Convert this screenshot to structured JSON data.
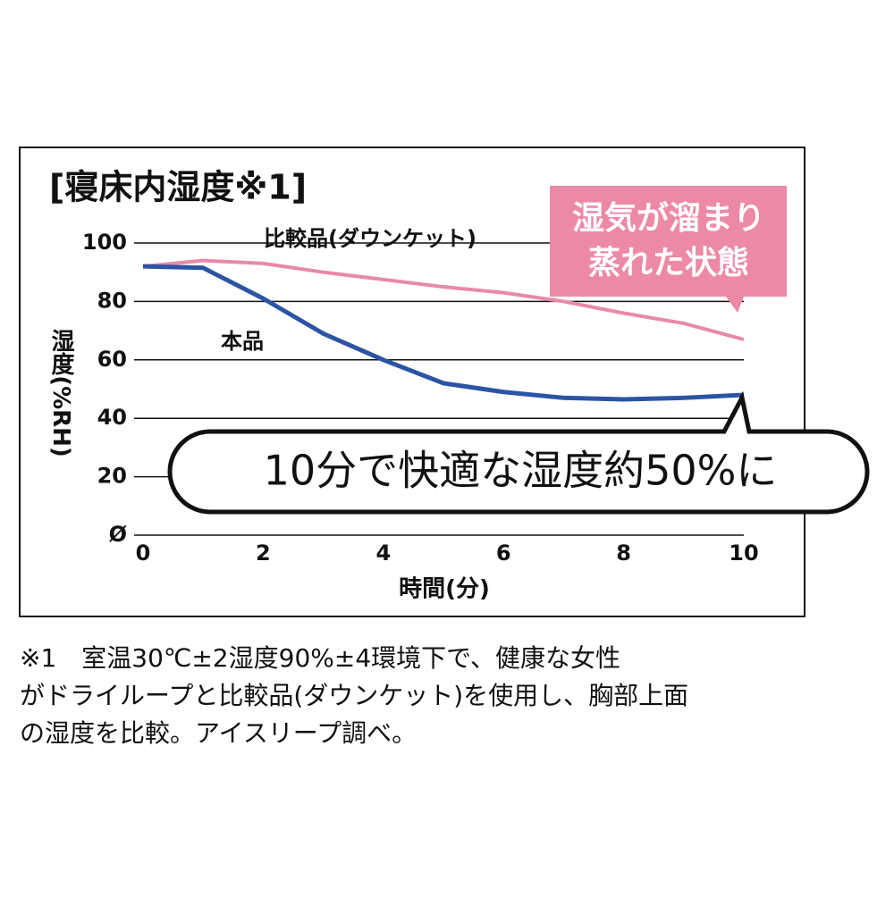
{
  "chart_data": {
    "type": "line",
    "title": "[寝床内湿度※1]",
    "y_label": "湿度(%RH)",
    "x_label": "時間(分)",
    "x": [
      0,
      1,
      2,
      3,
      4,
      5,
      6,
      7,
      8,
      9,
      10
    ],
    "series": [
      {
        "name": "比較品(ダウンケット)",
        "color": "#e889a8",
        "values": [
          92,
          94,
          93,
          90,
          87.5,
          85,
          83,
          80,
          76,
          72.5,
          67
        ]
      },
      {
        "name": "本品",
        "color": "#2b54a4",
        "values": [
          92,
          91.5,
          81,
          69,
          60,
          52,
          49,
          47,
          46.5,
          47,
          48
        ]
      }
    ],
    "xlim": [
      0,
      10
    ],
    "xticks": [
      0,
      2,
      4,
      6,
      8,
      10
    ],
    "ylim": [
      0,
      100
    ],
    "yticks": [
      {
        "value": 0,
        "label": "Ø"
      },
      20,
      40,
      60,
      80,
      100
    ],
    "grid": true,
    "annotations": [
      {
        "lines": [
          "湿気が溜まり",
          "蒸れた状態"
        ]
      },
      {
        "lines": [
          "10分で快適な湿度約50%に"
        ]
      }
    ]
  },
  "note": [
    "※1　室温30℃±2湿度90%±4環境下で、健康な女性",
    "がドライループと比較品(ダウンケット)を使用し、胸部上面",
    "の湿度を比較。アイスリープ調べ。"
  ]
}
